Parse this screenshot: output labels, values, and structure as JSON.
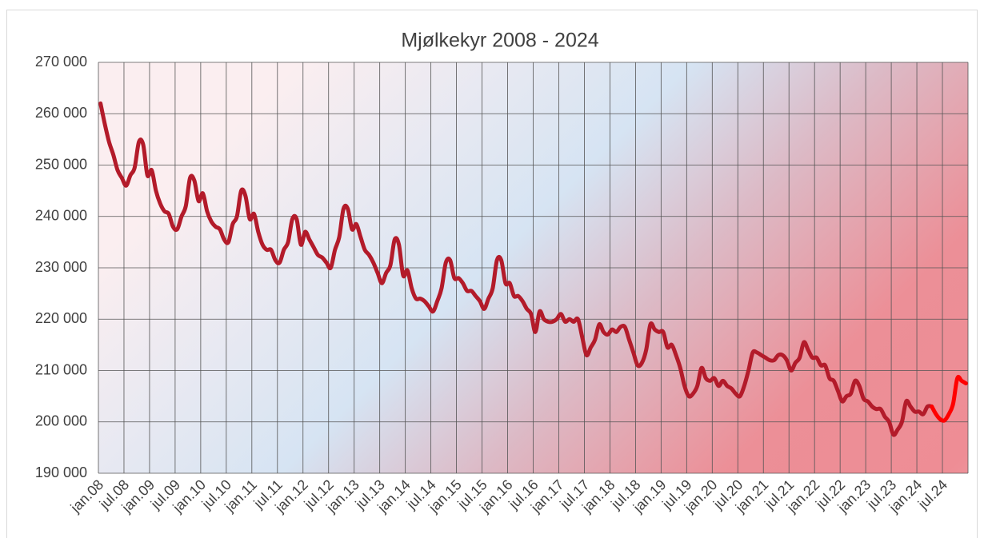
{
  "chart_data": {
    "type": "line",
    "title": "Mjølkekyr 2008 - 2024",
    "categories": [
      "jan.08",
      null,
      null,
      null,
      null,
      null,
      "jul.08",
      null,
      null,
      null,
      null,
      null,
      "jan.09",
      null,
      null,
      null,
      null,
      null,
      "jul.09",
      null,
      null,
      null,
      null,
      null,
      "jan.10",
      null,
      null,
      null,
      null,
      null,
      "jul.10",
      null,
      null,
      null,
      null,
      null,
      "jan.11",
      null,
      null,
      null,
      null,
      null,
      "jul.11",
      null,
      null,
      null,
      null,
      null,
      "jan.12",
      null,
      null,
      null,
      null,
      null,
      "jul.12",
      null,
      null,
      null,
      null,
      null,
      "jan.13",
      null,
      null,
      null,
      null,
      null,
      "jul.13",
      null,
      null,
      null,
      null,
      null,
      "jan.14",
      null,
      null,
      null,
      null,
      null,
      "jul.14",
      null,
      null,
      null,
      null,
      null,
      "jan.15",
      null,
      null,
      null,
      null,
      null,
      "jul.15",
      null,
      null,
      null,
      null,
      null,
      "jan.16",
      null,
      null,
      null,
      null,
      null,
      "jul.16",
      null,
      null,
      null,
      null,
      null,
      "jan.17",
      null,
      null,
      null,
      null,
      null,
      "jul.17",
      null,
      null,
      null,
      null,
      null,
      "jan.18",
      null,
      null,
      null,
      null,
      null,
      "jul.18",
      null,
      null,
      null,
      null,
      null,
      "jan.19",
      null,
      null,
      null,
      null,
      null,
      "jul.19",
      null,
      null,
      null,
      null,
      null,
      "jan.20",
      null,
      null,
      null,
      null,
      null,
      "jul.20",
      null,
      null,
      null,
      null,
      null,
      "jan.21",
      null,
      null,
      null,
      null,
      null,
      "jul.21",
      null,
      null,
      null,
      null,
      null,
      "jan.22",
      null,
      null,
      null,
      null,
      null,
      "jul.22",
      null,
      null,
      null,
      null,
      null,
      "jan.23",
      null,
      null,
      null,
      null,
      null,
      "jul.23",
      null,
      null,
      null,
      null,
      null,
      "jan.24",
      null,
      null,
      null,
      null,
      null,
      "jul.24",
      null,
      null,
      null,
      null,
      null
    ],
    "series": [
      {
        "color": "#b31b2a",
        "values": [
          262000,
          258000,
          254500,
          252000,
          249000,
          247500,
          246000,
          248000,
          249500,
          254500,
          254000,
          248000,
          249000,
          245000,
          242500,
          241000,
          240500,
          238000,
          237500,
          240000,
          242000,
          247500,
          247000,
          243000,
          244500,
          241000,
          239000,
          238000,
          237500,
          235500,
          235000,
          238500,
          240000,
          245000,
          244000,
          239500,
          240500,
          237000,
          234500,
          233500,
          233500,
          231500,
          231000,
          233500,
          235000,
          239500,
          239500,
          234500,
          237000,
          235500,
          234000,
          232500,
          232000,
          231000,
          230000,
          233500,
          236000,
          241500,
          241500,
          237500,
          238500,
          236000,
          233500,
          232500,
          231000,
          229000,
          227000,
          229000,
          230500,
          235500,
          234500,
          228500,
          229500,
          226000,
          224000,
          224000,
          223500,
          222500,
          221500,
          223500,
          226000,
          231000,
          231500,
          228000,
          228000,
          227000,
          225500,
          225500,
          224500,
          223500,
          222000,
          224000,
          226000,
          231500,
          231500,
          227000,
          227000,
          224500,
          224500,
          223500,
          222000,
          221000,
          217500,
          221500,
          220000,
          219500,
          219500,
          220000,
          221000,
          219500,
          220000,
          219500,
          220000,
          216500,
          213000,
          214500,
          216000,
          219000,
          217500,
          217000,
          218000,
          217500,
          218500,
          218500,
          216000,
          213500,
          211000,
          211500,
          214000,
          219000,
          218000,
          217500,
          217500,
          214500,
          215000,
          213000,
          210500,
          207000,
          205000,
          205500,
          207000,
          210500,
          208500,
          208000,
          208500,
          207000,
          208000,
          207000,
          206500,
          205500,
          205000,
          207000,
          210000,
          213500,
          213500,
          213000,
          212500,
          212000,
          212000,
          213000,
          213000,
          212000,
          210000,
          211500,
          212500,
          215500,
          214000,
          212500,
          212500,
          211000,
          211000,
          208500,
          208000,
          206000,
          204000,
          205000,
          205500,
          208000,
          207000,
          204500,
          204000,
          203000,
          202500,
          202500,
          201000,
          200000,
          197500,
          198500,
          200000,
          204000,
          203000,
          202000,
          202000,
          201500,
          203000,
          203000,
          null,
          null,
          null,
          null,
          null,
          null,
          null,
          null
        ]
      },
      {
        "color": "#ff0000",
        "values": [
          null,
          null,
          null,
          null,
          null,
          null,
          null,
          null,
          null,
          null,
          null,
          null,
          null,
          null,
          null,
          null,
          null,
          null,
          null,
          null,
          null,
          null,
          null,
          null,
          null,
          null,
          null,
          null,
          null,
          null,
          null,
          null,
          null,
          null,
          null,
          null,
          null,
          null,
          null,
          null,
          null,
          null,
          null,
          null,
          null,
          null,
          null,
          null,
          null,
          null,
          null,
          null,
          null,
          null,
          null,
          null,
          null,
          null,
          null,
          null,
          null,
          null,
          null,
          null,
          null,
          null,
          null,
          null,
          null,
          null,
          null,
          null,
          null,
          null,
          null,
          null,
          null,
          null,
          null,
          null,
          null,
          null,
          null,
          null,
          null,
          null,
          null,
          null,
          null,
          null,
          null,
          null,
          null,
          null,
          null,
          null,
          null,
          null,
          null,
          null,
          null,
          null,
          null,
          null,
          null,
          null,
          null,
          null,
          null,
          null,
          null,
          null,
          null,
          null,
          null,
          null,
          null,
          null,
          null,
          null,
          null,
          null,
          null,
          null,
          null,
          null,
          null,
          null,
          null,
          null,
          null,
          null,
          null,
          null,
          null,
          null,
          null,
          null,
          null,
          null,
          null,
          null,
          null,
          null,
          null,
          null,
          null,
          null,
          null,
          null,
          null,
          null,
          null,
          null,
          null,
          null,
          null,
          null,
          null,
          null,
          null,
          null,
          null,
          null,
          null,
          null,
          null,
          null,
          null,
          null,
          null,
          null,
          null,
          null,
          null,
          null,
          null,
          null,
          null,
          null,
          null,
          null,
          null,
          null,
          null,
          null,
          null,
          null,
          null,
          null,
          null,
          null,
          null,
          null,
          null,
          203000,
          201500,
          200500,
          200300,
          201500,
          203500,
          208500,
          208000,
          207500
        ]
      }
    ],
    "ylim": [
      190000,
      270000
    ],
    "yticks": [
      {
        "value": 190000,
        "label": "190 000"
      },
      {
        "value": 200000,
        "label": "200 000"
      },
      {
        "value": 210000,
        "label": "210 000"
      },
      {
        "value": 220000,
        "label": "220 000"
      },
      {
        "value": 230000,
        "label": "230 000"
      },
      {
        "value": 240000,
        "label": "240 000"
      },
      {
        "value": 250000,
        "label": "250 000"
      },
      {
        "value": 260000,
        "label": "260 000"
      },
      {
        "value": 270000,
        "label": "270 000"
      }
    ],
    "grid": true
  }
}
